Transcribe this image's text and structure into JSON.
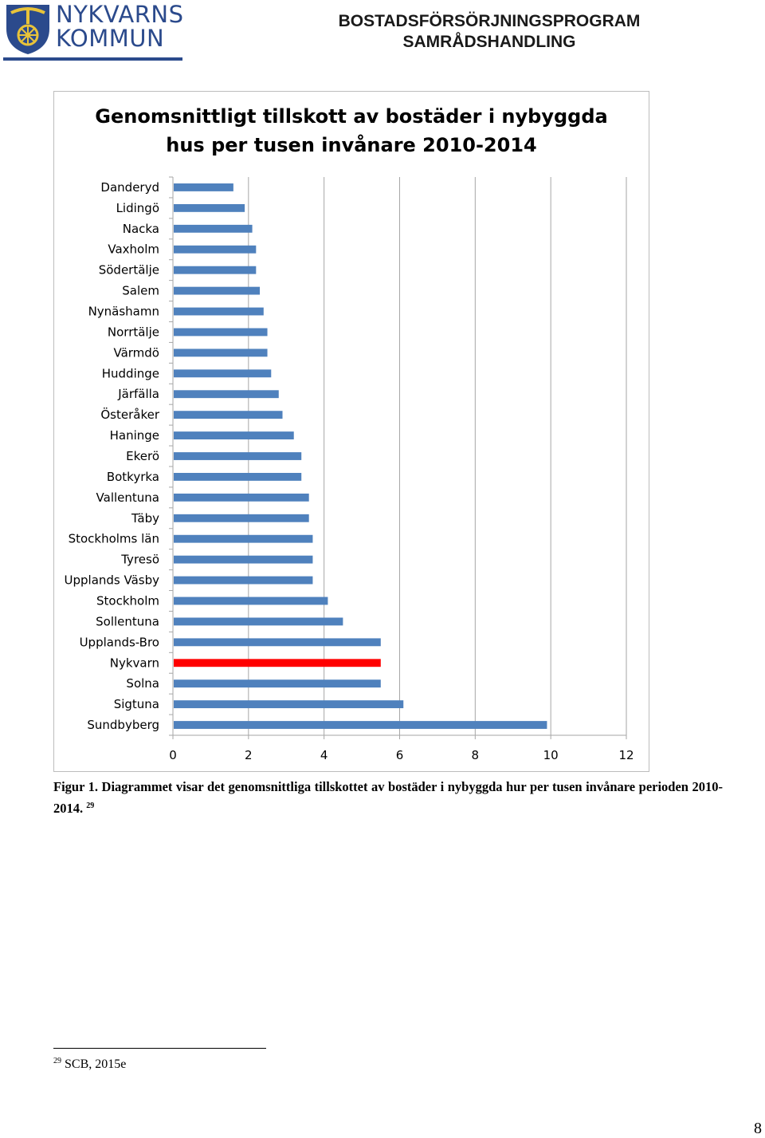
{
  "header": {
    "logo_line1": "NYKVARNS",
    "logo_line2": "KOMMUN",
    "title_line1": "BOSTADSFÖRSÖRJNINGSPROGRAM",
    "title_line2": "SAMRÅDSHANDLING"
  },
  "colors": {
    "bar": "#4f81bd",
    "highlight": "#ff0000",
    "logo": "#2b4a8c"
  },
  "chart_data": {
    "type": "bar",
    "orientation": "horizontal",
    "title_line1": "Genomsnittligt tillskott av bostäder i nybyggda",
    "title_line2": "hus per tusen invånare 2010-2014",
    "categories": [
      "Danderyd",
      "Lidingö",
      "Nacka",
      "Vaxholm",
      "Södertälje",
      "Salem",
      "Nynäshamn",
      "Norrtälje",
      "Värmdö",
      "Huddinge",
      "Järfälla",
      "Österåker",
      "Haninge",
      "Ekerö",
      "Botkyrka",
      "Vallentuna",
      "Täby",
      "Stockholms län",
      "Tyresö",
      "Upplands Väsby",
      "Stockholm",
      "Sollentuna",
      "Upplands-Bro",
      "Nykvarn",
      "Solna",
      "Sigtuna",
      "Sundbyberg"
    ],
    "values": [
      1.6,
      1.9,
      2.1,
      2.2,
      2.2,
      2.3,
      2.4,
      2.5,
      2.5,
      2.6,
      2.8,
      2.9,
      3.2,
      3.4,
      3.4,
      3.6,
      3.6,
      3.7,
      3.7,
      3.7,
      4.1,
      4.5,
      5.5,
      5.5,
      5.5,
      6.1,
      9.9
    ],
    "highlight_category": "Nykvarn",
    "xlim": [
      0,
      12
    ],
    "xticks": [
      0,
      2,
      4,
      6,
      8,
      10,
      12
    ],
    "grid": "vertical",
    "legend": "none"
  },
  "caption": {
    "text": "Figur 1. Diagrammet visar det genomsnittliga tillskottet av bostäder i nybyggda hur per tusen invånare perioden 2010-2014.",
    "ref": "29"
  },
  "footnote": {
    "ref": "29",
    "text": "SCB, 2015e"
  },
  "page_number": "8"
}
